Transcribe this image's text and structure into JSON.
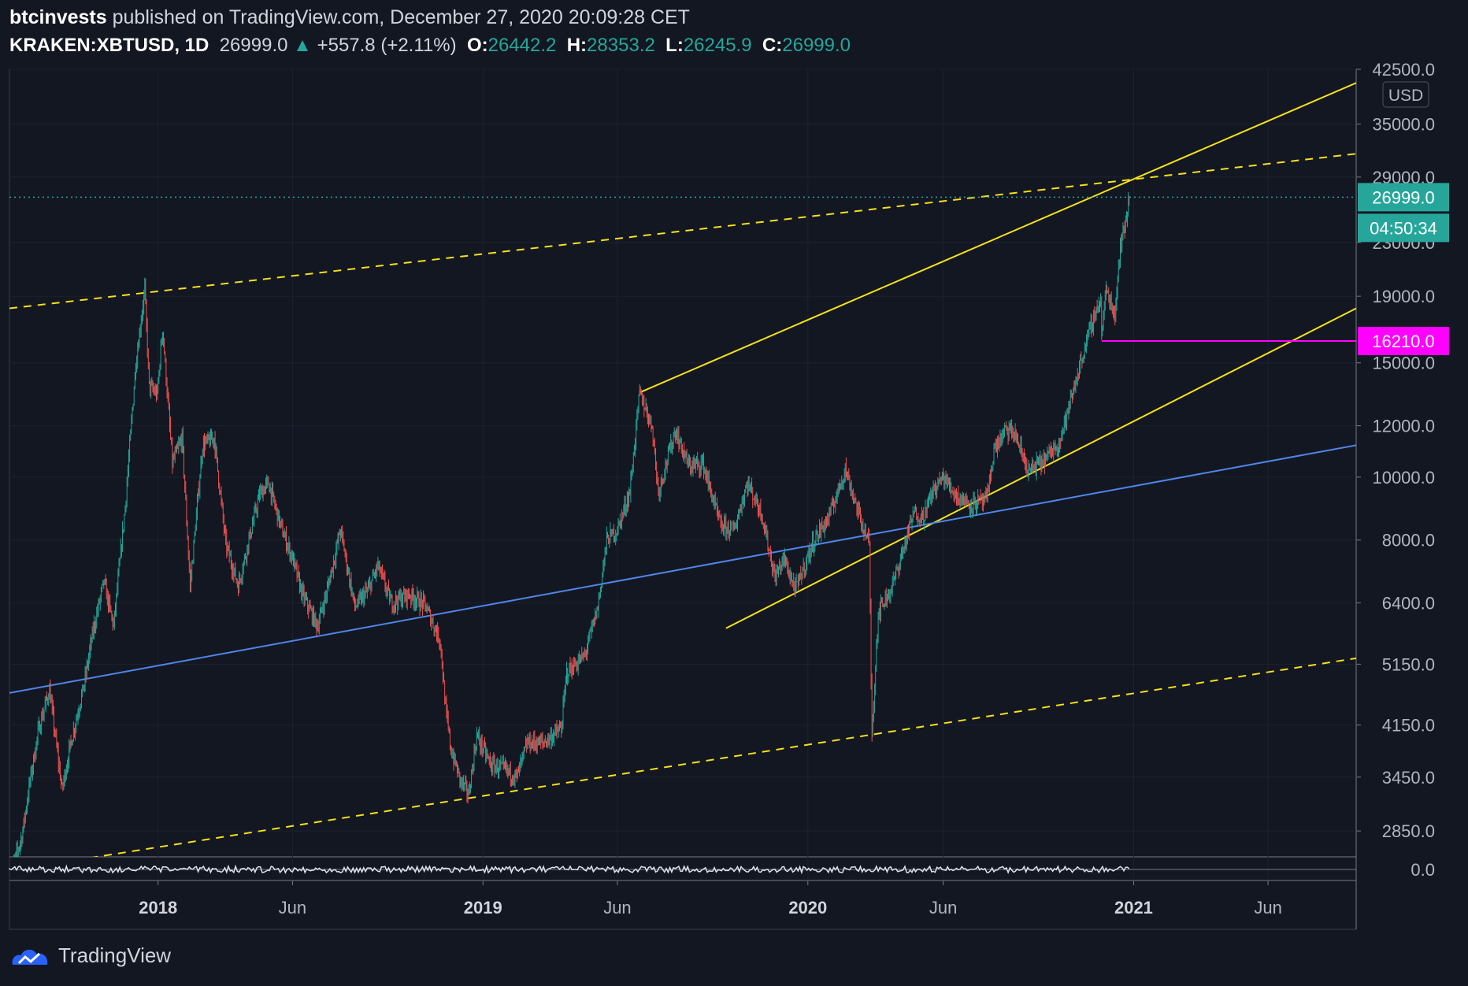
{
  "header": {
    "author": "btcinvests",
    "published_text": "published on TradingView.com, December 27, 2020 20:09:28 CET",
    "symbol": "KRAKEN:XBTUSD, 1D",
    "price": "26999.0",
    "change": "+557.8 (+2.11%)",
    "o_label": "O:",
    "o_value": "26442.2",
    "h_label": "H:",
    "h_value": "28353.2",
    "l_label": "L:",
    "l_value": "26245.9",
    "c_label": "C:",
    "c_value": "26999.0"
  },
  "footer": {
    "brand": "TradingView"
  },
  "colors": {
    "background": "#131722",
    "up": "#26a69a",
    "down": "#ef5350",
    "trend_yellow": "#f5e21a",
    "trend_blue": "#4f86e8",
    "support_magenta": "#ff00ff",
    "grid": "#1e2230",
    "axis_text": "#b2b5be"
  },
  "chart_data": {
    "type": "candlestick",
    "currency_label": "USD",
    "scale": "log",
    "ylim": [
      2600,
      42500
    ],
    "xlim": [
      "2017-07-18",
      "2021-09-08"
    ],
    "y_ticks": [
      "42500.0",
      "35000.0",
      "29000.0",
      "23000.0",
      "19000.0",
      "15000.0",
      "12000.0",
      "10000.0",
      "8000.0",
      "6400.0",
      "5150.0",
      "4150.0",
      "3450.0",
      "2850.0"
    ],
    "x_ticks": [
      {
        "label": "2018",
        "date": "2018-01-01",
        "bold": true
      },
      {
        "label": "Jun",
        "date": "2018-06-01",
        "bold": false
      },
      {
        "label": "2019",
        "date": "2019-01-01",
        "bold": true
      },
      {
        "label": "Jun",
        "date": "2019-06-01",
        "bold": false
      },
      {
        "label": "2020",
        "date": "2020-01-01",
        "bold": true
      },
      {
        "label": "Jun",
        "date": "2020-06-01",
        "bold": false
      },
      {
        "label": "2021",
        "date": "2021-01-01",
        "bold": true
      },
      {
        "label": "Jun",
        "date": "2021-06-01",
        "bold": false
      }
    ],
    "series": [
      {
        "price_points": [
          [
            "2017-07-18",
            2400
          ],
          [
            "2017-07-25",
            2600
          ],
          [
            "2017-08-01",
            2800
          ],
          [
            "2017-08-10",
            3400
          ],
          [
            "2017-08-20",
            4100
          ],
          [
            "2017-09-01",
            4700
          ],
          [
            "2017-09-15",
            3300
          ],
          [
            "2017-09-25",
            3900
          ],
          [
            "2017-10-10",
            4800
          ],
          [
            "2017-10-20",
            5800
          ],
          [
            "2017-11-01",
            6900
          ],
          [
            "2017-11-12",
            5900
          ],
          [
            "2017-11-25",
            9000
          ],
          [
            "2017-12-07",
            15000
          ],
          [
            "2017-12-17",
            19500
          ],
          [
            "2017-12-22",
            13800
          ],
          [
            "2017-12-31",
            13400
          ],
          [
            "2018-01-06",
            17000
          ],
          [
            "2018-01-17",
            10500
          ],
          [
            "2018-01-28",
            11500
          ],
          [
            "2018-02-06",
            6800
          ],
          [
            "2018-02-20",
            11200
          ],
          [
            "2018-03-05",
            11500
          ],
          [
            "2018-03-18",
            7900
          ],
          [
            "2018-04-01",
            6800
          ],
          [
            "2018-04-12",
            7900
          ],
          [
            "2018-04-25",
            9400
          ],
          [
            "2018-05-05",
            9800
          ],
          [
            "2018-05-20",
            8300
          ],
          [
            "2018-06-01",
            7500
          ],
          [
            "2018-06-12",
            6600
          ],
          [
            "2018-06-29",
            5900
          ],
          [
            "2018-07-10",
            6700
          ],
          [
            "2018-07-25",
            8300
          ],
          [
            "2018-08-10",
            6300
          ],
          [
            "2018-08-25",
            6700
          ],
          [
            "2018-09-05",
            7300
          ],
          [
            "2018-09-20",
            6400
          ],
          [
            "2018-10-10",
            6600
          ],
          [
            "2018-10-28",
            6350
          ],
          [
            "2018-11-14",
            5600
          ],
          [
            "2018-11-20",
            4400
          ],
          [
            "2018-11-26",
            3800
          ],
          [
            "2018-12-07",
            3400
          ],
          [
            "2018-12-16",
            3250
          ],
          [
            "2018-12-25",
            4000
          ],
          [
            "2019-01-10",
            3600
          ],
          [
            "2019-01-25",
            3550
          ],
          [
            "2019-02-08",
            3450
          ],
          [
            "2019-02-20",
            3900
          ],
          [
            "2019-03-10",
            3900
          ],
          [
            "2019-03-30",
            4100
          ],
          [
            "2019-04-05",
            5000
          ],
          [
            "2019-04-25",
            5300
          ],
          [
            "2019-05-10",
            6300
          ],
          [
            "2019-05-20",
            8000
          ],
          [
            "2019-06-01",
            8300
          ],
          [
            "2019-06-15",
            9500
          ],
          [
            "2019-06-26",
            13500
          ],
          [
            "2019-07-10",
            12000
          ],
          [
            "2019-07-17",
            9500
          ],
          [
            "2019-08-05",
            11800
          ],
          [
            "2019-08-20",
            10400
          ],
          [
            "2019-09-05",
            10500
          ],
          [
            "2019-09-25",
            8400
          ],
          [
            "2019-10-10",
            8300
          ],
          [
            "2019-10-25",
            9800
          ],
          [
            "2019-11-10",
            8800
          ],
          [
            "2019-11-25",
            7000
          ],
          [
            "2019-12-05",
            7500
          ],
          [
            "2019-12-18",
            6700
          ],
          [
            "2020-01-08",
            8000
          ],
          [
            "2020-01-25",
            8700
          ],
          [
            "2020-02-12",
            10300
          ],
          [
            "2020-02-28",
            8700
          ],
          [
            "2020-03-10",
            7900
          ],
          [
            "2020-03-12",
            4900
          ],
          [
            "2020-03-13",
            4000
          ],
          [
            "2020-03-20",
            6200
          ],
          [
            "2020-04-05",
            6800
          ],
          [
            "2020-04-29",
            8800
          ],
          [
            "2020-05-10",
            8700
          ],
          [
            "2020-05-20",
            9500
          ],
          [
            "2020-06-01",
            10000
          ],
          [
            "2020-06-15",
            9400
          ],
          [
            "2020-07-01",
            9100
          ],
          [
            "2020-07-20",
            9200
          ],
          [
            "2020-07-28",
            11000
          ],
          [
            "2020-08-10",
            11800
          ],
          [
            "2020-08-20",
            11700
          ],
          [
            "2020-09-05",
            10200
          ],
          [
            "2020-09-25",
            10700
          ],
          [
            "2020-10-10",
            11400
          ],
          [
            "2020-10-21",
            12900
          ],
          [
            "2020-11-05",
            15500
          ],
          [
            "2020-11-18",
            17800
          ],
          [
            "2020-11-25",
            18800
          ],
          [
            "2020-11-26",
            16500
          ],
          [
            "2020-12-01",
            19500
          ],
          [
            "2020-12-11",
            17800
          ],
          [
            "2020-12-17",
            23000
          ],
          [
            "2020-12-21",
            23800
          ],
          [
            "2020-12-27",
            26999
          ]
        ]
      }
    ],
    "current_price_label": "26999.0",
    "countdown_label": "04:50:34",
    "support_level_label": "16210.0",
    "oscillator_zero_label": "0.0",
    "support_level": {
      "price": 16210,
      "from": "2020-11-26"
    },
    "trendlines": [
      {
        "style": "dashed",
        "color": "yellow",
        "from": [
          "2017-07-18",
          18200
        ],
        "to": [
          "2021-09-08",
          31500
        ]
      },
      {
        "style": "dashed",
        "color": "yellow",
        "from": [
          "2017-09-15",
          2550
        ],
        "to": [
          "2021-09-08",
          5260
        ]
      },
      {
        "style": "solid",
        "color": "yellow",
        "from": [
          "2019-06-26",
          13500
        ],
        "to": [
          "2021-09-08",
          40500
        ]
      },
      {
        "style": "solid",
        "color": "yellow",
        "from": [
          "2019-10-01",
          5850
        ],
        "to": [
          "2021-09-08",
          18200
        ]
      },
      {
        "style": "solid",
        "color": "blue",
        "from": [
          "2017-07-18",
          4650
        ],
        "to": [
          "2021-09-08",
          11200
        ]
      }
    ]
  }
}
